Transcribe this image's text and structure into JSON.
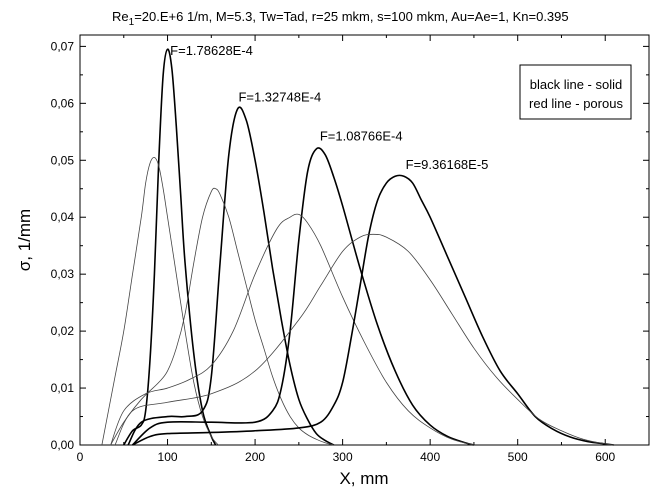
{
  "chart_data": {
    "type": "line",
    "title_main": "Re",
    "title_sub": "1",
    "title_rest": "=20.E+6 1/m, M=5.3, Tw=Tad, r=25 mkm, s=100 mkm, Au=Ae=1, Kn=0.395",
    "xlabel": "X, mm",
    "ylabel": "σ, 1/mm",
    "xlim": [
      0,
      650
    ],
    "ylim": [
      0,
      0.072
    ],
    "xticks": [
      0,
      100,
      200,
      300,
      400,
      500,
      600
    ],
    "xtick_labels": [
      "0",
      "100",
      "200",
      "300",
      "400",
      "500",
      "600"
    ],
    "yticks": [
      0,
      0.01,
      0.02,
      0.03,
      0.04,
      0.05,
      0.06,
      0.07
    ],
    "ytick_labels": [
      "0,00",
      "0,01",
      "0,02",
      "0,03",
      "0,04",
      "0,05",
      "0,06",
      "0,07"
    ],
    "legend": {
      "position": "top-right",
      "lines": [
        "black line - solid",
        "red line - porous"
      ]
    },
    "grid": false,
    "colors": {
      "solid": "#000000",
      "porous": "#444444"
    },
    "series": [
      {
        "name": "F=1.78628E-4",
        "group": "solid",
        "x": [
          50,
          60,
          70,
          75,
          80,
          85,
          90,
          95,
          100,
          105,
          110,
          115,
          120,
          130,
          140,
          150,
          155
        ],
        "y": [
          0,
          0.0025,
          0.0035,
          0.006,
          0.015,
          0.03,
          0.05,
          0.065,
          0.0695,
          0.066,
          0.056,
          0.044,
          0.032,
          0.016,
          0.006,
          0.0015,
          0
        ]
      },
      {
        "name": "",
        "group": "porous",
        "x": [
          25,
          30,
          40,
          50,
          60,
          70,
          75,
          80,
          85,
          90,
          95,
          100,
          110,
          120,
          130,
          140,
          150,
          158
        ],
        "y": [
          0,
          0.004,
          0.012,
          0.02,
          0.03,
          0.04,
          0.046,
          0.0495,
          0.0505,
          0.049,
          0.045,
          0.04,
          0.03,
          0.02,
          0.011,
          0.005,
          0.0015,
          0
        ]
      },
      {
        "name": "F=1.32748E-4",
        "group": "solid",
        "x": [
          55,
          70,
          100,
          120,
          140,
          150,
          160,
          170,
          180,
          190,
          200,
          210,
          220,
          230,
          240,
          250,
          260,
          270,
          280,
          290
        ],
        "y": [
          0,
          0.004,
          0.005,
          0.005,
          0.006,
          0.012,
          0.032,
          0.051,
          0.059,
          0.057,
          0.05,
          0.041,
          0.031,
          0.022,
          0.014,
          0.008,
          0.0045,
          0.002,
          0.0008,
          0
        ]
      },
      {
        "name": "",
        "group": "porous",
        "x": [
          35,
          50,
          70,
          90,
          100,
          110,
          120,
          130,
          140,
          150,
          155,
          160,
          170,
          180,
          190,
          200,
          210,
          220,
          230,
          240,
          250,
          260,
          270,
          280,
          290
        ],
        "y": [
          0,
          0.004,
          0.008,
          0.011,
          0.013,
          0.017,
          0.023,
          0.032,
          0.04,
          0.0445,
          0.045,
          0.044,
          0.04,
          0.034,
          0.028,
          0.022,
          0.017,
          0.012,
          0.008,
          0.005,
          0.003,
          0.0018,
          0.001,
          0.0004,
          0
        ]
      },
      {
        "name": "F=1.08766E-4",
        "group": "solid",
        "x": [
          60,
          80,
          100,
          150,
          200,
          220,
          230,
          240,
          250,
          260,
          270,
          280,
          290,
          300,
          320,
          340,
          360,
          380,
          400,
          420,
          440,
          450
        ],
        "y": [
          0,
          0.003,
          0.004,
          0.004,
          0.004,
          0.006,
          0.01,
          0.02,
          0.036,
          0.048,
          0.052,
          0.051,
          0.047,
          0.042,
          0.031,
          0.021,
          0.013,
          0.007,
          0.0035,
          0.0015,
          0.0004,
          0
        ]
      },
      {
        "name": "",
        "group": "porous",
        "x": [
          35,
          50,
          75,
          100,
          125,
          150,
          175,
          200,
          225,
          240,
          250,
          260,
          275,
          300,
          325,
          350,
          375,
          400,
          425,
          450
        ],
        "y": [
          0,
          0.006,
          0.009,
          0.01,
          0.0115,
          0.014,
          0.02,
          0.03,
          0.038,
          0.04,
          0.0405,
          0.039,
          0.035,
          0.026,
          0.018,
          0.011,
          0.006,
          0.003,
          0.001,
          0
        ]
      },
      {
        "name": "F=9.36168E-5",
        "group": "solid",
        "x": [
          60,
          80,
          100,
          150,
          200,
          250,
          275,
          290,
          300,
          310,
          320,
          330,
          340,
          350,
          360,
          370,
          380,
          390,
          400,
          420,
          440,
          460,
          480,
          500,
          520,
          540,
          560,
          580,
          600,
          610
        ],
        "y": [
          0,
          0.0015,
          0.002,
          0.0022,
          0.0025,
          0.003,
          0.004,
          0.007,
          0.011,
          0.019,
          0.028,
          0.037,
          0.043,
          0.046,
          0.0472,
          0.0472,
          0.046,
          0.043,
          0.04,
          0.033,
          0.026,
          0.019,
          0.013,
          0.009,
          0.005,
          0.0028,
          0.0014,
          0.0006,
          0.0002,
          0
        ]
      },
      {
        "name": "",
        "group": "porous",
        "x": [
          40,
          60,
          100,
          150,
          200,
          250,
          275,
          300,
          320,
          335,
          350,
          375,
          400,
          425,
          450,
          475,
          500,
          525,
          550,
          575,
          600,
          610
        ],
        "y": [
          0,
          0.006,
          0.0075,
          0.009,
          0.013,
          0.022,
          0.028,
          0.034,
          0.0365,
          0.037,
          0.0365,
          0.034,
          0.029,
          0.023,
          0.017,
          0.012,
          0.008,
          0.0045,
          0.0025,
          0.001,
          0.0002,
          0
        ]
      }
    ],
    "annotations": [
      {
        "text": "F=1.78628E-4",
        "x": 103,
        "y": 0.0685
      },
      {
        "text": "F=1.32748E-4",
        "x": 181,
        "y": 0.0603
      },
      {
        "text": "F=1.08766E-4",
        "x": 274,
        "y": 0.0535
      },
      {
        "text": "F=9.36168E-5",
        "x": 372,
        "y": 0.0485
      }
    ]
  }
}
